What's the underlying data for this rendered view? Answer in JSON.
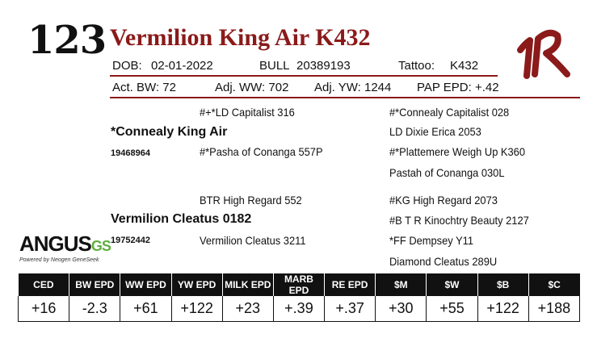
{
  "lot_number": "123",
  "animal_name": "Vermilion King Air K432",
  "details": {
    "dob_label": "DOB:",
    "dob": "02-01-2022",
    "sex": "BULL",
    "reg_number": "20389193",
    "tattoo_label": "Tattoo:",
    "tattoo": "K432"
  },
  "weights": {
    "act_bw": "Act. BW: 72",
    "adj_ww": "Adj. WW: 702",
    "adj_yw": "Adj. YW: 1244",
    "pap_epd": "PAP EPD: +.42"
  },
  "pedigree": {
    "sire": "*Connealy King Air",
    "sire_reg": "19468964",
    "sire_sire": "#+*LD Capitalist 316",
    "sire_dam": "#*Pasha of Conanga 557P",
    "sss": "#*Connealy Capitalist 028",
    "ssd": "LD Dixie Erica 2053",
    "sds": "#*Plattemere Weigh Up K360",
    "sdd": "Pastah of Conanga 030L",
    "dam": "Vermilion Cleatus 0182",
    "dam_reg": "19752442",
    "dam_sire": "BTR High Regard 552",
    "dam_dam": "Vermilion Cleatus 3211",
    "dss": "#KG High Regard 2073",
    "dsd": "#B T R Kinochtry Beauty 2127",
    "dds": "*FF Dempsey Y11",
    "ddd": "Diamond Cleatus 289U"
  },
  "logo": {
    "main": "ANGUS",
    "gs": "GS",
    "sub": "Powered by Neogen GeneSeek"
  },
  "brand_mark": "1R",
  "colors": {
    "accent": "#8b1a1a",
    "header_bg": "#111111",
    "gs_green": "#5fae3e"
  },
  "epd_headers": [
    "CED",
    "BW EPD",
    "WW EPD",
    "YW EPD",
    "MILK EPD",
    "MARB EPD",
    "RE EPD",
    "$M",
    "$W",
    "$B",
    "$C"
  ],
  "epd_values": [
    "+16",
    "-2.3",
    "+61",
    "+122",
    "+23",
    "+.39",
    "+.37",
    "+30",
    "+55",
    "+122",
    "+188"
  ]
}
